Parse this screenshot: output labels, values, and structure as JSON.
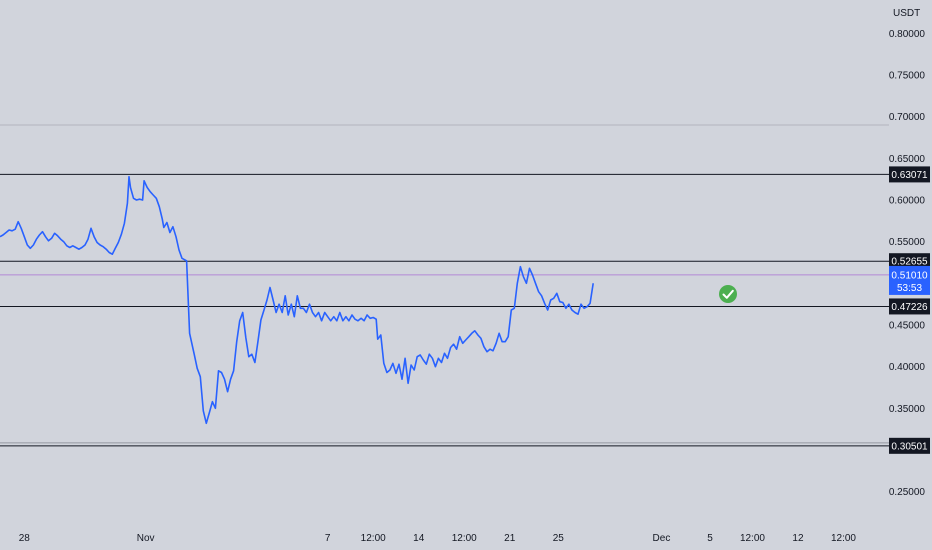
{
  "chart_data": {
    "type": "line",
    "currency": "USDT",
    "ylim": [
      0.21,
      0.84
    ],
    "y_ticks": [
      "0.80000",
      "0.75000",
      "0.70000",
      "0.65000",
      "0.60000",
      "0.55000",
      "0.45000",
      "0.40000",
      "0.35000",
      "0.25000"
    ],
    "x_ticks": [
      {
        "label": "28",
        "x": -2
      },
      {
        "label": "Nov",
        "x": 2
      },
      {
        "label": "7",
        "x": 8
      },
      {
        "label": "12:00",
        "x": 9.5
      },
      {
        "label": "14",
        "x": 11
      },
      {
        "label": "12:00",
        "x": 12.5
      },
      {
        "label": "21",
        "x": 14
      },
      {
        "label": "25",
        "x": 15.6
      },
      {
        "label": "Dec",
        "x": 19
      },
      {
        "label": "5",
        "x": 20.6
      },
      {
        "label": "12:00",
        "x": 22
      },
      {
        "label": "12",
        "x": 23.5
      },
      {
        "label": "12:00",
        "x": 25
      }
    ],
    "xlim": [
      -2.8,
      26.5
    ],
    "levels": [
      {
        "value": 0.63071,
        "label": "0.63071"
      },
      {
        "value": 0.52655,
        "label": "0.52655"
      },
      {
        "value": 0.47226,
        "label": "0.47226"
      },
      {
        "value": 0.30501,
        "label": "0.30501"
      }
    ],
    "faint_line": 0.69,
    "last_price": {
      "value": 0.5101,
      "label": "0.51010",
      "countdown": "53:53"
    },
    "series": [
      {
        "color": "#2962ff",
        "points": [
          [
            -2.8,
            0.556
          ],
          [
            -2.7,
            0.558
          ],
          [
            -2.6,
            0.561
          ],
          [
            -2.5,
            0.564
          ],
          [
            -2.4,
            0.563
          ],
          [
            -2.3,
            0.565
          ],
          [
            -2.2,
            0.574
          ],
          [
            -2.1,
            0.566
          ],
          [
            -2.0,
            0.556
          ],
          [
            -1.9,
            0.546
          ],
          [
            -1.8,
            0.542
          ],
          [
            -1.7,
            0.546
          ],
          [
            -1.6,
            0.553
          ],
          [
            -1.5,
            0.558
          ],
          [
            -1.4,
            0.562
          ],
          [
            -1.3,
            0.556
          ],
          [
            -1.2,
            0.551
          ],
          [
            -1.1,
            0.554
          ],
          [
            -1.0,
            0.56
          ],
          [
            -0.9,
            0.557
          ],
          [
            -0.8,
            0.553
          ],
          [
            -0.7,
            0.55
          ],
          [
            -0.6,
            0.545
          ],
          [
            -0.5,
            0.543
          ],
          [
            -0.4,
            0.545
          ],
          [
            -0.3,
            0.543
          ],
          [
            -0.2,
            0.541
          ],
          [
            -0.1,
            0.543
          ],
          [
            0.0,
            0.546
          ],
          [
            0.1,
            0.553
          ],
          [
            0.2,
            0.566
          ],
          [
            0.3,
            0.556
          ],
          [
            0.4,
            0.549
          ],
          [
            0.5,
            0.546
          ],
          [
            0.6,
            0.544
          ],
          [
            0.7,
            0.541
          ],
          [
            0.8,
            0.537
          ],
          [
            0.9,
            0.535
          ],
          [
            1.0,
            0.542
          ],
          [
            1.1,
            0.549
          ],
          [
            1.2,
            0.559
          ],
          [
            1.3,
            0.572
          ],
          [
            1.4,
            0.596
          ],
          [
            1.45,
            0.628
          ],
          [
            1.5,
            0.615
          ],
          [
            1.6,
            0.602
          ],
          [
            1.7,
            0.6
          ],
          [
            1.8,
            0.601
          ],
          [
            1.9,
            0.6
          ],
          [
            1.95,
            0.623
          ],
          [
            2.05,
            0.615
          ],
          [
            2.15,
            0.61
          ],
          [
            2.25,
            0.606
          ],
          [
            2.35,
            0.602
          ],
          [
            2.45,
            0.592
          ],
          [
            2.55,
            0.577
          ],
          [
            2.6,
            0.567
          ],
          [
            2.7,
            0.573
          ],
          [
            2.8,
            0.561
          ],
          [
            2.9,
            0.568
          ],
          [
            3.0,
            0.556
          ],
          [
            3.1,
            0.54
          ],
          [
            3.2,
            0.53
          ],
          [
            3.35,
            0.527
          ],
          [
            3.45,
            0.44
          ],
          [
            3.6,
            0.415
          ],
          [
            3.7,
            0.398
          ],
          [
            3.8,
            0.388
          ],
          [
            3.9,
            0.347
          ],
          [
            4.0,
            0.332
          ],
          [
            4.1,
            0.345
          ],
          [
            4.2,
            0.358
          ],
          [
            4.3,
            0.35
          ],
          [
            4.4,
            0.395
          ],
          [
            4.5,
            0.393
          ],
          [
            4.6,
            0.385
          ],
          [
            4.7,
            0.37
          ],
          [
            4.8,
            0.385
          ],
          [
            4.9,
            0.395
          ],
          [
            5.0,
            0.43
          ],
          [
            5.1,
            0.455
          ],
          [
            5.2,
            0.465
          ],
          [
            5.3,
            0.435
          ],
          [
            5.4,
            0.412
          ],
          [
            5.5,
            0.415
          ],
          [
            5.6,
            0.405
          ],
          [
            5.7,
            0.43
          ],
          [
            5.8,
            0.456
          ],
          [
            5.9,
            0.468
          ],
          [
            6.0,
            0.48
          ],
          [
            6.1,
            0.495
          ],
          [
            6.2,
            0.48
          ],
          [
            6.3,
            0.465
          ],
          [
            6.4,
            0.475
          ],
          [
            6.5,
            0.465
          ],
          [
            6.6,
            0.485
          ],
          [
            6.7,
            0.462
          ],
          [
            6.8,
            0.475
          ],
          [
            6.9,
            0.46
          ],
          [
            7.0,
            0.485
          ],
          [
            7.1,
            0.47
          ],
          [
            7.2,
            0.47
          ],
          [
            7.3,
            0.465
          ],
          [
            7.4,
            0.475
          ],
          [
            7.5,
            0.465
          ],
          [
            7.6,
            0.46
          ],
          [
            7.7,
            0.465
          ],
          [
            7.8,
            0.455
          ],
          [
            7.9,
            0.465
          ],
          [
            8.0,
            0.46
          ],
          [
            8.1,
            0.455
          ],
          [
            8.2,
            0.46
          ],
          [
            8.3,
            0.455
          ],
          [
            8.4,
            0.465
          ],
          [
            8.5,
            0.455
          ],
          [
            8.6,
            0.46
          ],
          [
            8.7,
            0.455
          ],
          [
            8.8,
            0.462
          ],
          [
            8.9,
            0.457
          ],
          [
            9.0,
            0.455
          ],
          [
            9.1,
            0.458
          ],
          [
            9.2,
            0.455
          ],
          [
            9.3,
            0.462
          ],
          [
            9.4,
            0.458
          ],
          [
            9.5,
            0.459
          ],
          [
            9.6,
            0.457
          ],
          [
            9.65,
            0.433
          ],
          [
            9.75,
            0.438
          ],
          [
            9.85,
            0.404
          ],
          [
            9.95,
            0.393
          ],
          [
            10.05,
            0.396
          ],
          [
            10.15,
            0.404
          ],
          [
            10.25,
            0.392
          ],
          [
            10.35,
            0.403
          ],
          [
            10.45,
            0.385
          ],
          [
            10.55,
            0.41
          ],
          [
            10.65,
            0.38
          ],
          [
            10.75,
            0.402
          ],
          [
            10.85,
            0.396
          ],
          [
            10.95,
            0.412
          ],
          [
            11.05,
            0.414
          ],
          [
            11.15,
            0.408
          ],
          [
            11.25,
            0.403
          ],
          [
            11.35,
            0.415
          ],
          [
            11.45,
            0.41
          ],
          [
            11.55,
            0.4
          ],
          [
            11.65,
            0.41
          ],
          [
            11.75,
            0.405
          ],
          [
            11.85,
            0.416
          ],
          [
            11.95,
            0.41
          ],
          [
            12.05,
            0.423
          ],
          [
            12.15,
            0.427
          ],
          [
            12.25,
            0.421
          ],
          [
            12.35,
            0.436
          ],
          [
            12.45,
            0.428
          ],
          [
            12.55,
            0.432
          ],
          [
            12.65,
            0.436
          ],
          [
            12.75,
            0.44
          ],
          [
            12.85,
            0.443
          ],
          [
            12.95,
            0.438
          ],
          [
            13.05,
            0.434
          ],
          [
            13.15,
            0.424
          ],
          [
            13.25,
            0.418
          ],
          [
            13.35,
            0.421
          ],
          [
            13.45,
            0.419
          ],
          [
            13.55,
            0.428
          ],
          [
            13.65,
            0.44
          ],
          [
            13.75,
            0.43
          ],
          [
            13.85,
            0.43
          ],
          [
            13.95,
            0.436
          ],
          [
            14.05,
            0.468
          ],
          [
            14.15,
            0.47
          ],
          [
            14.25,
            0.5
          ],
          [
            14.35,
            0.52
          ],
          [
            14.45,
            0.508
          ],
          [
            14.55,
            0.5
          ],
          [
            14.65,
            0.518
          ],
          [
            14.75,
            0.51
          ],
          [
            14.85,
            0.5
          ],
          [
            14.95,
            0.49
          ],
          [
            15.05,
            0.485
          ],
          [
            15.15,
            0.476
          ],
          [
            15.25,
            0.468
          ],
          [
            15.35,
            0.48
          ],
          [
            15.45,
            0.482
          ],
          [
            15.55,
            0.488
          ],
          [
            15.65,
            0.478
          ],
          [
            15.75,
            0.477
          ],
          [
            15.85,
            0.47
          ],
          [
            15.95,
            0.475
          ],
          [
            16.05,
            0.468
          ],
          [
            16.15,
            0.465
          ],
          [
            16.25,
            0.463
          ],
          [
            16.35,
            0.475
          ],
          [
            16.45,
            0.47
          ],
          [
            16.55,
            0.472
          ],
          [
            16.65,
            0.476
          ],
          [
            16.75,
            0.5
          ]
        ]
      }
    ]
  },
  "annotation": {
    "icon": "check-circle-icon",
    "color": "#4caf50"
  }
}
